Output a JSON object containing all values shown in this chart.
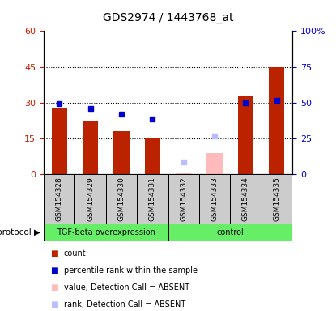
{
  "title": "GDS2974 / 1443768_at",
  "samples": [
    "GSM154328",
    "GSM154329",
    "GSM154330",
    "GSM154331",
    "GSM154332",
    "GSM154333",
    "GSM154334",
    "GSM154335"
  ],
  "red_bars": [
    28,
    22,
    18,
    15,
    0.5,
    0.5,
    33,
    45
  ],
  "blue_squares_left": [
    29.5,
    27.5,
    25,
    23,
    null,
    null,
    30,
    31
  ],
  "pink_bars": [
    null,
    null,
    null,
    null,
    0.5,
    9,
    null,
    null
  ],
  "lavender_squares_left": [
    null,
    null,
    null,
    null,
    5,
    16,
    null,
    null
  ],
  "group1_label": "TGF-beta overexpression",
  "group2_label": "control",
  "group1_indices": [
    0,
    1,
    2,
    3
  ],
  "group2_indices": [
    4,
    5,
    6,
    7
  ],
  "left_yticks": [
    0,
    15,
    30,
    45,
    60
  ],
  "right_yticks": [
    0,
    25,
    50,
    75,
    100
  ],
  "right_yticklabels": [
    "0",
    "25",
    "50",
    "75",
    "100%"
  ],
  "left_ylim": [
    0,
    60
  ],
  "right_ylim": [
    0,
    100
  ],
  "red_color": "#bb2200",
  "blue_color": "#0000cc",
  "pink_color": "#ffbbbb",
  "lavender_color": "#bbbbff",
  "green_color": "#66ee66",
  "gray_color": "#cccccc",
  "bg_color": "#ffffff",
  "dotted_line_values": [
    15,
    30,
    45
  ],
  "legend_items": [
    "count",
    "percentile rank within the sample",
    "value, Detection Call = ABSENT",
    "rank, Detection Call = ABSENT"
  ]
}
